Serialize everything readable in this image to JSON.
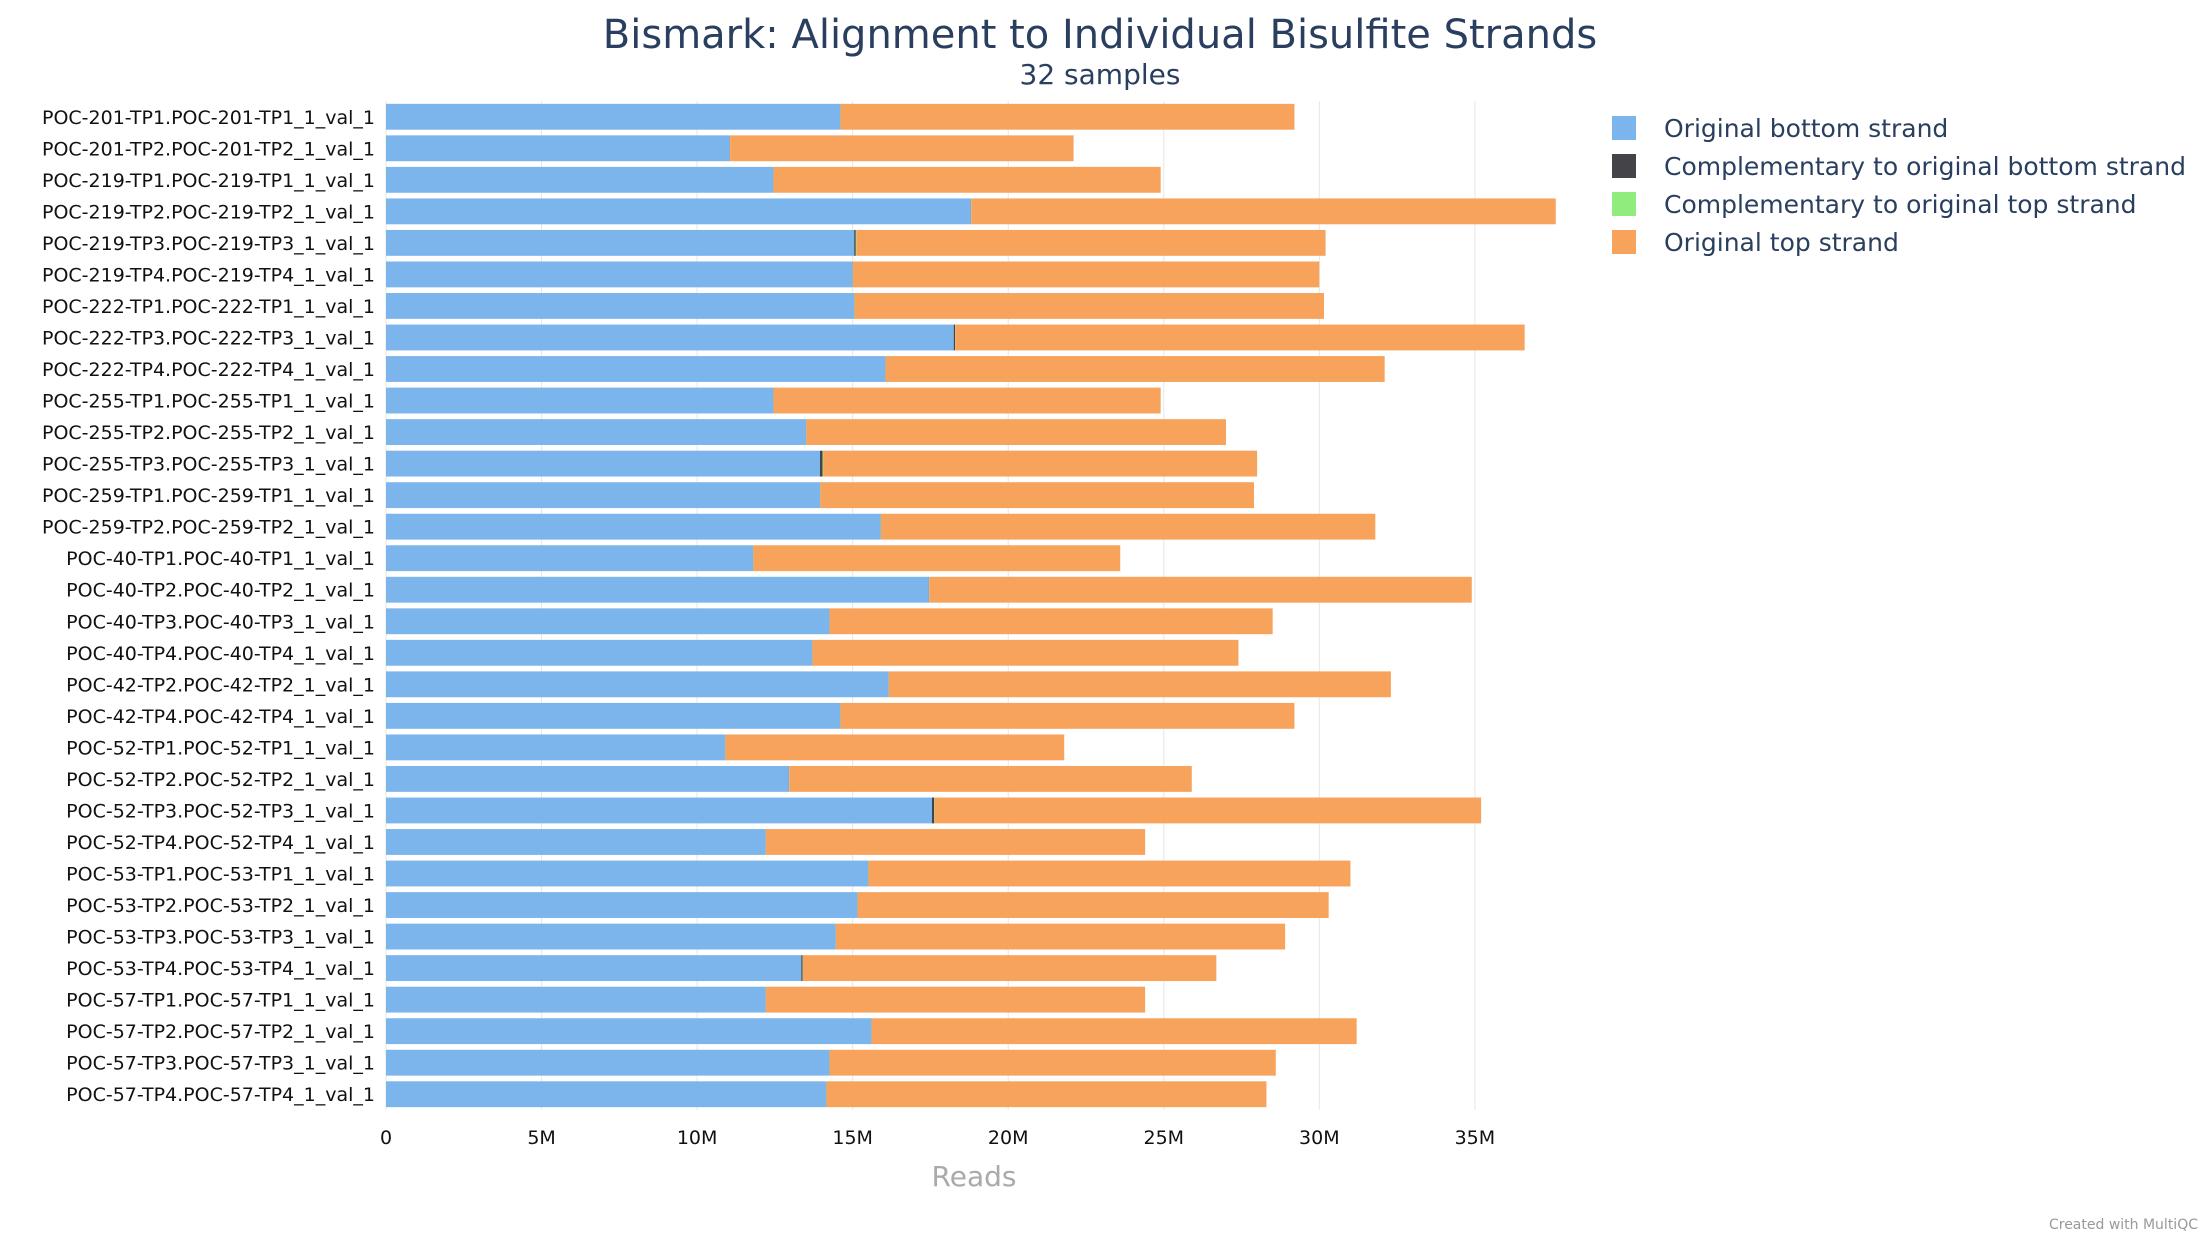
{
  "chart_data": {
    "type": "bar",
    "orientation": "horizontal",
    "stacked": true,
    "title": "Bismark: Alignment to Individual Bisulfite Strands",
    "subtitle": "32 samples",
    "xlabel": "Reads",
    "ylabel": "",
    "xlim": [
      0,
      37800000
    ],
    "xticks": [
      0,
      5000000,
      10000000,
      15000000,
      20000000,
      25000000,
      30000000,
      35000000
    ],
    "xtick_labels": [
      "0",
      "5M",
      "10M",
      "15M",
      "20M",
      "25M",
      "30M",
      "35M"
    ],
    "grid": true,
    "legend_position": "top-right",
    "categories": [
      "POC-201-TP1.POC-201-TP1_1_val_1",
      "POC-201-TP2.POC-201-TP2_1_val_1",
      "POC-219-TP1.POC-219-TP1_1_val_1",
      "POC-219-TP2.POC-219-TP2_1_val_1",
      "POC-219-TP3.POC-219-TP3_1_val_1",
      "POC-219-TP4.POC-219-TP4_1_val_1",
      "POC-222-TP1.POC-222-TP1_1_val_1",
      "POC-222-TP3.POC-222-TP3_1_val_1",
      "POC-222-TP4.POC-222-TP4_1_val_1",
      "POC-255-TP1.POC-255-TP1_1_val_1",
      "POC-255-TP2.POC-255-TP2_1_val_1",
      "POC-255-TP3.POC-255-TP3_1_val_1",
      "POC-259-TP1.POC-259-TP1_1_val_1",
      "POC-259-TP2.POC-259-TP2_1_val_1",
      "POC-40-TP1.POC-40-TP1_1_val_1",
      "POC-40-TP2.POC-40-TP2_1_val_1",
      "POC-40-TP3.POC-40-TP3_1_val_1",
      "POC-40-TP4.POC-40-TP4_1_val_1",
      "POC-42-TP2.POC-42-TP2_1_val_1",
      "POC-42-TP4.POC-42-TP4_1_val_1",
      "POC-52-TP1.POC-52-TP1_1_val_1",
      "POC-52-TP2.POC-52-TP2_1_val_1",
      "POC-52-TP3.POC-52-TP3_1_val_1",
      "POC-52-TP4.POC-52-TP4_1_val_1",
      "POC-53-TP1.POC-53-TP1_1_val_1",
      "POC-53-TP2.POC-53-TP2_1_val_1",
      "POC-53-TP3.POC-53-TP3_1_val_1",
      "POC-53-TP4.POC-53-TP4_1_val_1",
      "POC-57-TP1.POC-57-TP1_1_val_1",
      "POC-57-TP2.POC-57-TP2_1_val_1",
      "POC-57-TP3.POC-57-TP3_1_val_1",
      "POC-57-TP4.POC-57-TP4_1_val_1"
    ],
    "series": [
      {
        "name": "Original bottom strand",
        "color": "#7cb5ec",
        "values": [
          14600000,
          11050000,
          12450000,
          18800000,
          15050000,
          15000000,
          15050000,
          18250000,
          16050000,
          12450000,
          13500000,
          13950000,
          13950000,
          15900000,
          11800000,
          17450000,
          14250000,
          13700000,
          16150000,
          14600000,
          10900000,
          12950000,
          17550000,
          12200000,
          15500000,
          15150000,
          14450000,
          13350000,
          12200000,
          15600000,
          14250000,
          14150000
        ]
      },
      {
        "name": "Complementary to original bottom strand",
        "color": "#434348",
        "values": [
          5000,
          5000,
          5000,
          5000,
          50000,
          5000,
          5000,
          40000,
          5000,
          5000,
          5000,
          80000,
          5000,
          5000,
          5000,
          5000,
          5000,
          5000,
          5000,
          5000,
          5000,
          5000,
          70000,
          5000,
          5000,
          5000,
          5000,
          40000,
          5000,
          5000,
          5000,
          5000
        ]
      },
      {
        "name": "Complementary to original top strand",
        "color": "#90ed7d",
        "values": [
          5000,
          5000,
          5000,
          5000,
          20000,
          5000,
          5000,
          10000,
          5000,
          5000,
          5000,
          20000,
          5000,
          5000,
          5000,
          5000,
          5000,
          5000,
          5000,
          5000,
          5000,
          5000,
          10000,
          5000,
          5000,
          5000,
          5000,
          10000,
          5000,
          5000,
          5000,
          5000
        ]
      },
      {
        "name": "Original top strand",
        "color": "#f7a35c",
        "values": [
          14590000,
          11040000,
          12440000,
          18790000,
          15080000,
          14990000,
          15090000,
          18300000,
          16040000,
          12440000,
          13490000,
          13950000,
          13940000,
          15890000,
          11790000,
          17440000,
          14240000,
          13690000,
          16140000,
          14590000,
          10890000,
          12940000,
          17570000,
          12190000,
          15490000,
          15140000,
          14440000,
          13290000,
          12190000,
          15590000,
          14340000,
          14140000
        ]
      }
    ],
    "credit": "Created with MultiQC"
  }
}
